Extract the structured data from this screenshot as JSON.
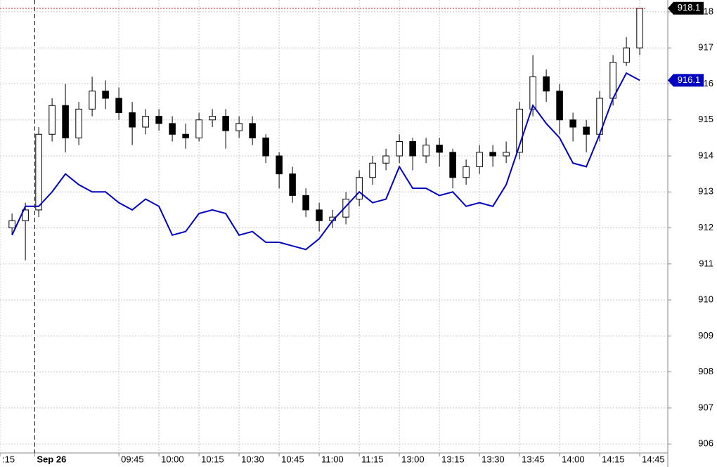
{
  "chart_data": {
    "type": "candlestick",
    "x": [
      0,
      1,
      2,
      3,
      4,
      5,
      6,
      7,
      8,
      9,
      10,
      11,
      12,
      13,
      14,
      15,
      16,
      17,
      18,
      19,
      20,
      21,
      22,
      23,
      24,
      25,
      26,
      27,
      28,
      29,
      30,
      31,
      32,
      33,
      34,
      35,
      36,
      37,
      38,
      39,
      40,
      41,
      42,
      43,
      44,
      45,
      46,
      47
    ],
    "open": [
      912.0,
      912.2,
      912.5,
      914.6,
      915.4,
      914.5,
      915.3,
      915.8,
      915.6,
      915.2,
      914.8,
      915.1,
      914.9,
      914.6,
      914.5,
      915.0,
      915.1,
      914.7,
      914.9,
      914.5,
      914.0,
      913.5,
      912.9,
      912.5,
      912.2,
      912.3,
      912.8,
      913.4,
      913.8,
      914.0,
      914.4,
      914.0,
      914.3,
      914.1,
      913.4,
      913.7,
      914.1,
      914.0,
      914.1,
      915.3,
      916.2,
      915.8,
      915.0,
      914.8,
      914.6,
      915.6,
      916.6,
      917.0
    ],
    "high": [
      912.4,
      912.7,
      914.8,
      915.6,
      916.0,
      915.5,
      916.2,
      916.1,
      915.9,
      915.5,
      915.3,
      915.3,
      915.1,
      914.9,
      915.2,
      915.3,
      915.3,
      915.1,
      915.1,
      914.6,
      914.1,
      913.7,
      913.1,
      912.7,
      912.5,
      913.0,
      913.6,
      914.0,
      914.2,
      914.6,
      914.5,
      914.5,
      914.5,
      914.2,
      913.9,
      914.3,
      914.3,
      914.4,
      915.5,
      916.8,
      916.4,
      916.0,
      915.2,
      915.0,
      915.8,
      916.8,
      917.3,
      918.1
    ],
    "low": [
      911.8,
      911.1,
      912.3,
      914.4,
      914.1,
      914.3,
      915.1,
      915.3,
      915.0,
      914.3,
      914.6,
      914.7,
      914.4,
      914.2,
      914.4,
      914.8,
      914.2,
      914.5,
      914.3,
      913.8,
      913.1,
      912.7,
      912.3,
      911.9,
      912.0,
      912.1,
      912.6,
      913.2,
      913.6,
      913.8,
      913.6,
      913.8,
      913.7,
      913.1,
      913.2,
      913.5,
      913.7,
      913.8,
      913.9,
      915.1,
      915.5,
      914.6,
      914.4,
      914.1,
      914.4,
      915.4,
      916.5,
      916.8
    ],
    "close": [
      912.2,
      912.5,
      914.6,
      915.4,
      914.5,
      915.3,
      915.8,
      915.6,
      915.2,
      914.8,
      915.1,
      914.9,
      914.6,
      914.5,
      915.0,
      915.1,
      914.7,
      914.9,
      914.5,
      914.0,
      913.5,
      912.9,
      912.5,
      912.2,
      912.3,
      912.8,
      913.4,
      913.8,
      914.0,
      914.4,
      914.0,
      914.3,
      914.1,
      913.4,
      913.7,
      914.1,
      914.0,
      914.1,
      915.3,
      916.2,
      915.8,
      915.0,
      914.8,
      914.6,
      915.6,
      916.6,
      917.0,
      918.1
    ],
    "up_color": "#ffffff",
    "down_color": "#000000",
    "overlay": {
      "color": "#0000c0",
      "values": [
        911.8,
        912.6,
        912.6,
        913.0,
        913.5,
        913.2,
        913.0,
        913.0,
        912.7,
        912.5,
        912.8,
        912.6,
        911.8,
        911.9,
        912.4,
        912.5,
        912.4,
        911.8,
        911.9,
        911.6,
        911.6,
        911.5,
        911.4,
        911.7,
        912.2,
        912.6,
        913.0,
        912.7,
        912.8,
        913.7,
        913.1,
        913.1,
        912.9,
        913.0,
        912.6,
        912.7,
        912.6,
        913.2,
        914.3,
        915.4,
        914.9,
        914.5,
        913.8,
        913.7,
        914.6,
        915.6,
        916.3,
        916.1
      ]
    },
    "price_labels": [
      918.1,
      916.1
    ],
    "price_label_colors": [
      "#000000",
      "#0000c0"
    ],
    "xlim": [
      -0.9,
      49.1
    ],
    "xticks": [
      {
        "value": -0.9,
        "label": ":15"
      },
      {
        "value": 1.7,
        "label": "Sep 26"
      },
      {
        "value": 8,
        "label": "09:45"
      },
      {
        "value": 11,
        "label": "10:00"
      },
      {
        "value": 14,
        "label": "10:15"
      },
      {
        "value": 17,
        "label": "10:30"
      },
      {
        "value": 20,
        "label": "10:45"
      },
      {
        "value": 23,
        "label": "11:00"
      },
      {
        "value": 26,
        "label": "11:15"
      },
      {
        "value": 29,
        "label": "13:00"
      },
      {
        "value": 32,
        "label": "13:15"
      },
      {
        "value": 35,
        "label": "13:30"
      },
      {
        "value": 38,
        "label": "13:45"
      },
      {
        "value": 41,
        "label": "14:00"
      },
      {
        "value": 44,
        "label": "14:15"
      },
      {
        "value": 47,
        "label": "14:45"
      }
    ],
    "ylim": [
      905.75,
      918.33
    ],
    "yticks": [
      906,
      907,
      908,
      909,
      910,
      911,
      912,
      913,
      914,
      915,
      916,
      917,
      918
    ],
    "grid": true
  }
}
